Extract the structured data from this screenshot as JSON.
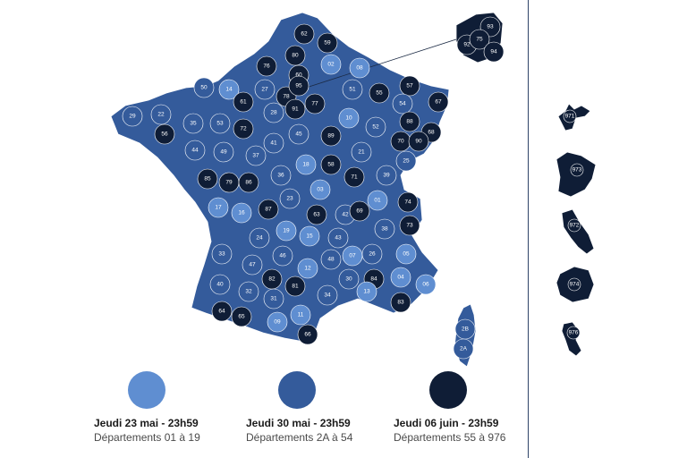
{
  "colors": {
    "light": "#5f8ed1",
    "medium": "#345b9b",
    "dark": "#0f1d36",
    "border": "#ffffff",
    "divider": "#2f4468"
  },
  "legend": [
    {
      "tier": "light",
      "date": "Jeudi 23 mai - 23h59",
      "range": "Départements 01 à 19"
    },
    {
      "tier": "medium",
      "date": "Jeudi 30 mai - 23h59",
      "range": "Départements 2A à 54"
    },
    {
      "tier": "dark",
      "date": "Jeudi 06 juin - 23h59",
      "range": "Départements 55 à 976"
    }
  ],
  "departments": [
    {
      "code": "59",
      "tier": "dark"
    },
    {
      "code": "62",
      "tier": "dark"
    },
    {
      "code": "80",
      "tier": "dark"
    },
    {
      "code": "76",
      "tier": "dark"
    },
    {
      "code": "60",
      "tier": "dark"
    },
    {
      "code": "02",
      "tier": "light"
    },
    {
      "code": "08",
      "tier": "light"
    },
    {
      "code": "27",
      "tier": "medium"
    },
    {
      "code": "14",
      "tier": "light"
    },
    {
      "code": "50",
      "tier": "medium"
    },
    {
      "code": "61",
      "tier": "dark"
    },
    {
      "code": "28",
      "tier": "medium"
    },
    {
      "code": "78",
      "tier": "dark"
    },
    {
      "code": "95",
      "tier": "dark"
    },
    {
      "code": "77",
      "tier": "dark"
    },
    {
      "code": "91",
      "tier": "dark"
    },
    {
      "code": "51",
      "tier": "medium"
    },
    {
      "code": "55",
      "tier": "dark"
    },
    {
      "code": "57",
      "tier": "dark"
    },
    {
      "code": "67",
      "tier": "dark"
    },
    {
      "code": "54",
      "tier": "medium"
    },
    {
      "code": "88",
      "tier": "dark"
    },
    {
      "code": "68",
      "tier": "dark"
    },
    {
      "code": "10",
      "tier": "light"
    },
    {
      "code": "52",
      "tier": "medium"
    },
    {
      "code": "70",
      "tier": "dark"
    },
    {
      "code": "90",
      "tier": "dark"
    },
    {
      "code": "29",
      "tier": "medium"
    },
    {
      "code": "22",
      "tier": "medium"
    },
    {
      "code": "56",
      "tier": "dark"
    },
    {
      "code": "35",
      "tier": "medium"
    },
    {
      "code": "53",
      "tier": "medium"
    },
    {
      "code": "72",
      "tier": "dark"
    },
    {
      "code": "44",
      "tier": "medium"
    },
    {
      "code": "49",
      "tier": "medium"
    },
    {
      "code": "45",
      "tier": "medium"
    },
    {
      "code": "89",
      "tier": "dark"
    },
    {
      "code": "21",
      "tier": "medium"
    },
    {
      "code": "41",
      "tier": "medium"
    },
    {
      "code": "37",
      "tier": "medium"
    },
    {
      "code": "18",
      "tier": "light"
    },
    {
      "code": "58",
      "tier": "dark"
    },
    {
      "code": "25",
      "tier": "medium"
    },
    {
      "code": "39",
      "tier": "medium"
    },
    {
      "code": "85",
      "tier": "dark"
    },
    {
      "code": "79",
      "tier": "dark"
    },
    {
      "code": "86",
      "tier": "dark"
    },
    {
      "code": "36",
      "tier": "medium"
    },
    {
      "code": "71",
      "tier": "dark"
    },
    {
      "code": "03",
      "tier": "light"
    },
    {
      "code": "17",
      "tier": "light"
    },
    {
      "code": "16",
      "tier": "light"
    },
    {
      "code": "87",
      "tier": "dark"
    },
    {
      "code": "23",
      "tier": "medium"
    },
    {
      "code": "63",
      "tier": "dark"
    },
    {
      "code": "42",
      "tier": "medium"
    },
    {
      "code": "69",
      "tier": "dark"
    },
    {
      "code": "01",
      "tier": "light"
    },
    {
      "code": "74",
      "tier": "dark"
    },
    {
      "code": "73",
      "tier": "dark"
    },
    {
      "code": "33",
      "tier": "medium"
    },
    {
      "code": "24",
      "tier": "medium"
    },
    {
      "code": "19",
      "tier": "light"
    },
    {
      "code": "15",
      "tier": "light"
    },
    {
      "code": "43",
      "tier": "medium"
    },
    {
      "code": "38",
      "tier": "medium"
    },
    {
      "code": "07",
      "tier": "light"
    },
    {
      "code": "26",
      "tier": "medium"
    },
    {
      "code": "05",
      "tier": "light"
    },
    {
      "code": "47",
      "tier": "medium"
    },
    {
      "code": "46",
      "tier": "medium"
    },
    {
      "code": "12",
      "tier": "light"
    },
    {
      "code": "48",
      "tier": "medium"
    },
    {
      "code": "40",
      "tier": "medium"
    },
    {
      "code": "82",
      "tier": "dark"
    },
    {
      "code": "81",
      "tier": "dark"
    },
    {
      "code": "30",
      "tier": "medium"
    },
    {
      "code": "84",
      "tier": "dark"
    },
    {
      "code": "04",
      "tier": "light"
    },
    {
      "code": "06",
      "tier": "light"
    },
    {
      "code": "32",
      "tier": "medium"
    },
    {
      "code": "34",
      "tier": "medium"
    },
    {
      "code": "13",
      "tier": "light"
    },
    {
      "code": "83",
      "tier": "dark"
    },
    {
      "code": "64",
      "tier": "dark"
    },
    {
      "code": "65",
      "tier": "dark"
    },
    {
      "code": "31",
      "tier": "medium"
    },
    {
      "code": "09",
      "tier": "light"
    },
    {
      "code": "11",
      "tier": "light"
    },
    {
      "code": "66",
      "tier": "dark"
    },
    {
      "code": "2B",
      "tier": "medium"
    },
    {
      "code": "2A",
      "tier": "medium"
    },
    {
      "code": "93",
      "tier": "dark"
    },
    {
      "code": "92",
      "tier": "dark"
    },
    {
      "code": "75",
      "tier": "dark"
    },
    {
      "code": "94",
      "tier": "dark"
    },
    {
      "code": "971",
      "tier": "dark"
    },
    {
      "code": "973",
      "tier": "dark"
    },
    {
      "code": "972",
      "tier": "dark"
    },
    {
      "code": "974",
      "tier": "dark"
    },
    {
      "code": "976",
      "tier": "dark"
    }
  ]
}
